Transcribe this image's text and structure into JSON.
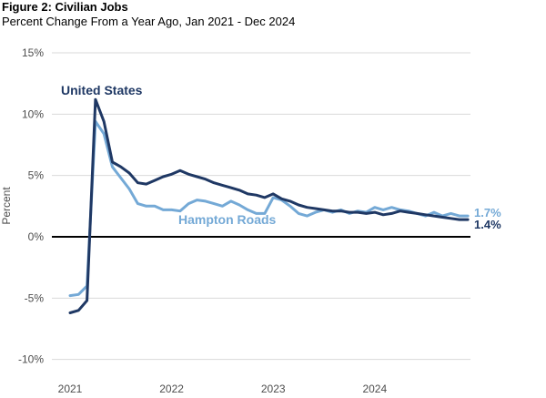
{
  "figure": {
    "title": "Figure 2: Civilian Jobs",
    "subtitle": "Percent Change From a Year Ago, Jan 2021 - Dec 2024"
  },
  "chart_data": {
    "type": "line",
    "title": "Figure 2: Civilian Jobs",
    "subtitle": "Percent Change From a Year Ago, Jan 2021 - Dec 2024",
    "xlabel": "",
    "ylabel": "Percent",
    "ylim": [
      -10,
      15
    ],
    "grid": "horizontal",
    "zero_line": true,
    "legend_position": "inline-labels",
    "yticks": [
      {
        "value": 15,
        "label": "15%"
      },
      {
        "value": 10,
        "label": "10%"
      },
      {
        "value": 5,
        "label": "5%"
      },
      {
        "value": 0,
        "label": "0%"
      },
      {
        "value": -5,
        "label": "-5%"
      },
      {
        "value": -10,
        "label": "-10%"
      }
    ],
    "xticks": [
      {
        "month_index": 0,
        "label": "2021"
      },
      {
        "month_index": 12,
        "label": "2022"
      },
      {
        "month_index": 24,
        "label": "2023"
      },
      {
        "month_index": 36,
        "label": "2024"
      }
    ],
    "months": [
      "Jan 2021",
      "Feb 2021",
      "Mar 2021",
      "Apr 2021",
      "May 2021",
      "Jun 2021",
      "Jul 2021",
      "Aug 2021",
      "Sep 2021",
      "Oct 2021",
      "Nov 2021",
      "Dec 2021",
      "Jan 2022",
      "Feb 2022",
      "Mar 2022",
      "Apr 2022",
      "May 2022",
      "Jun 2022",
      "Jul 2022",
      "Aug 2022",
      "Sep 2022",
      "Oct 2022",
      "Nov 2022",
      "Dec 2022",
      "Jan 2023",
      "Feb 2023",
      "Mar 2023",
      "Apr 2023",
      "May 2023",
      "Jun 2023",
      "Jul 2023",
      "Aug 2023",
      "Sep 2023",
      "Oct 2023",
      "Nov 2023",
      "Dec 2023",
      "Jan 2024",
      "Feb 2024",
      "Mar 2024",
      "Apr 2024",
      "May 2024",
      "Jun 2024",
      "Jul 2024",
      "Aug 2024",
      "Sep 2024",
      "Oct 2024",
      "Nov 2024",
      "Dec 2024"
    ],
    "series": [
      {
        "name": "United States",
        "color": "#1F3864",
        "end_label": "1.4%",
        "values": [
          -6.2,
          -6.0,
          -5.2,
          11.2,
          9.4,
          6.1,
          5.7,
          5.2,
          4.4,
          4.3,
          4.6,
          4.9,
          5.1,
          5.4,
          5.1,
          4.9,
          4.7,
          4.4,
          4.2,
          4.0,
          3.8,
          3.5,
          3.4,
          3.2,
          3.5,
          3.1,
          2.9,
          2.6,
          2.4,
          2.3,
          2.2,
          2.1,
          2.1,
          2.0,
          2.0,
          1.9,
          2.0,
          1.8,
          1.9,
          2.1,
          2.0,
          1.9,
          1.8,
          1.7,
          1.6,
          1.5,
          1.4,
          1.4
        ]
      },
      {
        "name": "Hampton Roads",
        "color": "#74A9D6",
        "end_label": "1.7%",
        "values": [
          -4.8,
          -4.7,
          -4.0,
          9.4,
          8.4,
          5.7,
          4.8,
          3.9,
          2.7,
          2.5,
          2.5,
          2.2,
          2.2,
          2.1,
          2.7,
          3.0,
          2.9,
          2.7,
          2.5,
          2.9,
          2.6,
          2.2,
          1.9,
          1.9,
          3.2,
          3.0,
          2.5,
          1.9,
          1.7,
          2.0,
          2.2,
          2.0,
          2.2,
          1.9,
          2.1,
          2.0,
          2.4,
          2.2,
          2.4,
          2.2,
          2.1,
          1.9,
          1.7,
          2.0,
          1.7,
          1.9,
          1.7,
          1.7
        ]
      }
    ],
    "style": {
      "grid_color": "#D9D9D9",
      "zero_line_color": "#000000",
      "tick_text_color": "#4D4D4D",
      "background": "#FFFFFF"
    }
  }
}
